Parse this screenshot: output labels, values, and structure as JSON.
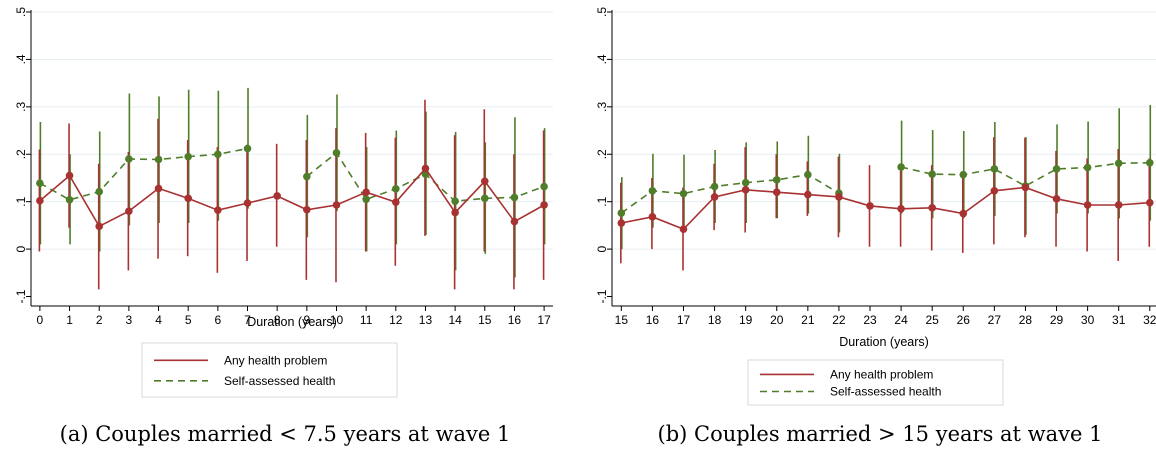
{
  "chart_data": [
    {
      "type": "line",
      "caption": "(a) Couples married < 7.5 years at wave 1",
      "xlabel": "Duration (years)",
      "ylabel": "",
      "xlim": [
        -0.3,
        17.3
      ],
      "ylim": [
        -0.12,
        0.5
      ],
      "yticks": [
        -0.1,
        0,
        0.1,
        0.2,
        0.3,
        0.4,
        0.5
      ],
      "ytick_labels": [
        "-.1",
        "0",
        ".1",
        ".2",
        ".3",
        ".4",
        ".5"
      ],
      "x": [
        0,
        1,
        2,
        3,
        4,
        5,
        6,
        7,
        8,
        9,
        10,
        11,
        12,
        13,
        14,
        15,
        16,
        17
      ],
      "xtick_labels": [
        "0",
        "1",
        "2",
        "3",
        "4",
        "5",
        "6",
        "7",
        "8",
        "9",
        "10",
        "11",
        "12",
        "13",
        "14",
        "15",
        "16",
        "17"
      ],
      "grid": true,
      "legend_position": "bottom",
      "series": [
        {
          "name": "Any health problem",
          "color": "#a83232",
          "style": "solid",
          "values": [
            0.102,
            0.155,
            0.048,
            0.08,
            0.128,
            0.107,
            0.082,
            0.097,
            0.112,
            0.083,
            0.093,
            0.12,
            0.099,
            0.17,
            0.077,
            0.143,
            0.058,
            0.093
          ],
          "lower": [
            -0.005,
            0.045,
            -0.085,
            -0.045,
            -0.02,
            -0.015,
            -0.05,
            -0.025,
            0.005,
            -0.065,
            -0.07,
            -0.005,
            -0.035,
            0.028,
            -0.085,
            -0.005,
            -0.085,
            -0.065
          ],
          "upper": [
            0.21,
            0.265,
            0.18,
            0.205,
            0.275,
            0.23,
            0.215,
            0.22,
            0.222,
            0.23,
            0.255,
            0.245,
            0.235,
            0.315,
            0.24,
            0.295,
            0.2,
            0.25
          ]
        },
        {
          "name": "Self-assessed health",
          "color": "#4f7d2a",
          "style": "dashed",
          "values": [
            0.139,
            0.104,
            0.121,
            0.19,
            0.189,
            0.195,
            0.2,
            0.212,
            null,
            0.153,
            0.203,
            0.105,
            0.127,
            0.158,
            0.101,
            0.107,
            0.109,
            0.132
          ],
          "lower": [
            0.01,
            0.01,
            -0.005,
            0.05,
            0.055,
            0.055,
            0.06,
            0.085,
            null,
            0.025,
            0.08,
            -0.005,
            0.01,
            0.03,
            -0.045,
            -0.01,
            -0.06,
            0.01
          ],
          "upper": [
            0.268,
            0.2,
            0.248,
            0.328,
            0.322,
            0.336,
            0.334,
            0.34,
            null,
            0.283,
            0.326,
            0.215,
            0.25,
            0.29,
            0.247,
            0.225,
            0.278,
            0.255
          ]
        }
      ]
    },
    {
      "type": "line",
      "caption": "(b) Couples married > 15 years at wave 1",
      "xlabel": "Duration (years)",
      "ylabel": "",
      "xlim": [
        14.7,
        32.2
      ],
      "ylim": [
        -0.12,
        0.5
      ],
      "yticks": [
        -0.1,
        0,
        0.1,
        0.2,
        0.3,
        0.4,
        0.5
      ],
      "ytick_labels": [
        "-.1",
        "0",
        ".1",
        ".2",
        ".3",
        ".4",
        ".5"
      ],
      "x": [
        15,
        16,
        17,
        18,
        19,
        20,
        21,
        22,
        23,
        24,
        25,
        26,
        27,
        28,
        29,
        30,
        31,
        32
      ],
      "xtick_labels": [
        "15",
        "16",
        "17",
        "18",
        "19",
        "20",
        "21",
        "22",
        "23",
        "24",
        "25",
        "26",
        "27",
        "28",
        "29",
        "30",
        "31",
        "32"
      ],
      "grid": true,
      "legend_position": "bottom",
      "series": [
        {
          "name": "Any health problem",
          "color": "#a83232",
          "style": "solid",
          "values": [
            0.055,
            0.068,
            0.042,
            0.11,
            0.125,
            0.12,
            0.115,
            0.11,
            0.091,
            0.085,
            0.087,
            0.075,
            0.123,
            0.13,
            0.106,
            0.093,
            0.093,
            0.098
          ],
          "lower": [
            -0.03,
            0.0,
            -0.045,
            0.04,
            0.035,
            0.065,
            0.07,
            0.025,
            0.005,
            0.005,
            -0.003,
            -0.008,
            0.01,
            0.025,
            0.005,
            -0.005,
            -0.025,
            0.005
          ],
          "upper": [
            0.14,
            0.15,
            0.13,
            0.18,
            0.215,
            0.2,
            0.185,
            0.195,
            0.177,
            0.165,
            0.177,
            0.158,
            0.236,
            0.235,
            0.207,
            0.191,
            0.211,
            0.191
          ]
        },
        {
          "name": "Self-assessed health",
          "color": "#4f7d2a",
          "style": "dashed",
          "values": [
            0.076,
            0.123,
            0.117,
            0.132,
            0.14,
            0.146,
            0.157,
            0.118,
            null,
            0.173,
            0.158,
            0.157,
            0.169,
            0.133,
            0.169,
            0.172,
            0.181,
            0.182
          ],
          "lower": [
            0.0,
            0.045,
            0.035,
            0.055,
            0.055,
            0.065,
            0.075,
            0.035,
            null,
            0.075,
            0.065,
            0.065,
            0.07,
            0.03,
            0.075,
            0.075,
            0.065,
            0.06
          ],
          "upper": [
            0.152,
            0.201,
            0.199,
            0.209,
            0.225,
            0.227,
            0.239,
            0.201,
            null,
            0.271,
            0.251,
            0.249,
            0.268,
            0.236,
            0.263,
            0.269,
            0.297,
            0.304
          ]
        }
      ]
    }
  ]
}
